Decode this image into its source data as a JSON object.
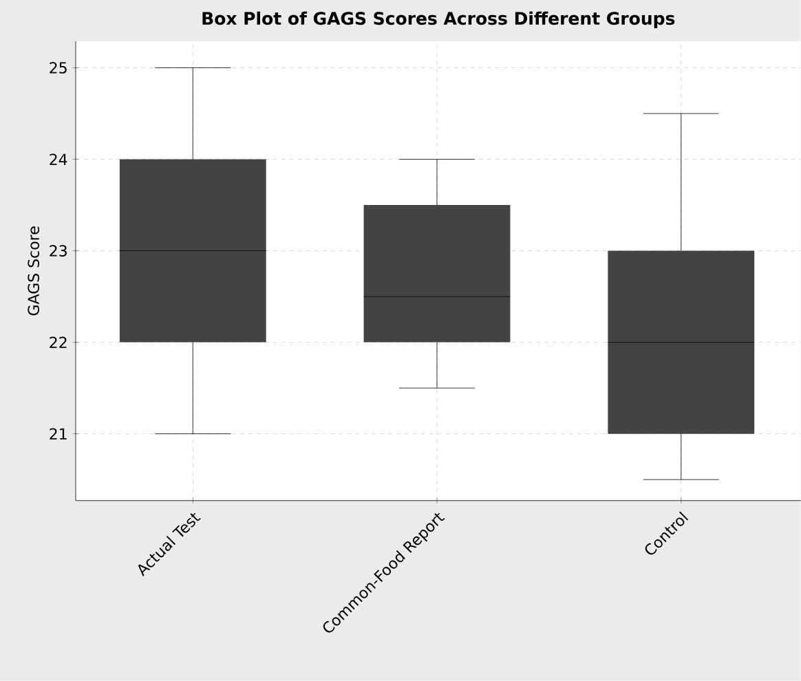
{
  "chart_data": {
    "type": "box",
    "title": "Box Plot of GAGS Scores Across Different Groups",
    "ylabel": "GAGS Score",
    "categories": [
      "Actual Test",
      "Common-Food Report",
      "Control"
    ],
    "boxes": [
      {
        "low": 21,
        "q1": 22,
        "median": 23,
        "q3": 24,
        "high": 25
      },
      {
        "low": 21.5,
        "q1": 22,
        "median": 22.5,
        "q3": 23.5,
        "high": 24
      },
      {
        "low": 20.5,
        "q1": 21,
        "median": 22,
        "q3": 23,
        "high": 24.5
      }
    ],
    "color": "#444444",
    "ylim": [
      20.27,
      25.29
    ],
    "yticks": [
      21,
      22,
      23,
      24,
      25
    ],
    "grid": true
  }
}
